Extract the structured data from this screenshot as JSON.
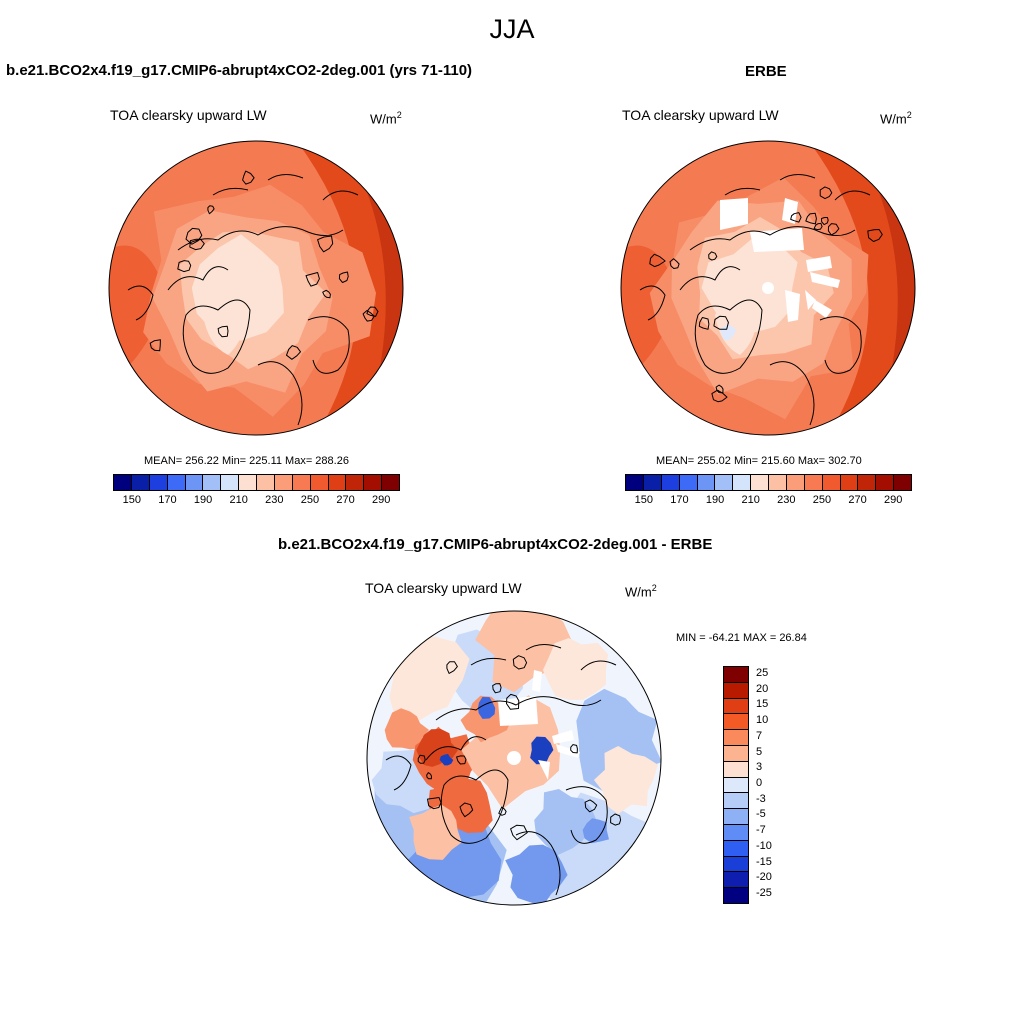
{
  "figure": {
    "title": "JJA"
  },
  "panels": {
    "model": {
      "title": "b.e21.BCO2x4.f19_g17.CMIP6-abrupt4xCO2-2deg.001 (yrs 71-110)",
      "variable": "TOA clearsky upward LW",
      "units_base": "W/m",
      "units_exp": "2",
      "stats": "MEAN= 256.22  Min= 225.11  Max= 288.26",
      "map_kind": "model"
    },
    "obs": {
      "title": "ERBE",
      "variable": "TOA clearsky upward LW",
      "units_base": "W/m",
      "units_exp": "2",
      "stats": "MEAN= 255.02  Min= 215.60  Max= 302.70",
      "map_kind": "obs"
    },
    "diff": {
      "title": "b.e21.BCO2x4.f19_g17.CMIP6-abrupt4xCO2-2deg.001 - ERBE",
      "variable": "TOA clearsky upward LW",
      "units_base": "W/m",
      "units_exp": "2",
      "stats": "MIN = -64.21 MAX =  26.84",
      "map_kind": "diff"
    }
  },
  "colorbars": {
    "absolute": {
      "colors": [
        "#00007f",
        "#0a1fa8",
        "#1e3fe0",
        "#3d6af7",
        "#6d95f5",
        "#a3bff7",
        "#d4e4fb",
        "#fde0d2",
        "#fcc0a4",
        "#fb9d78",
        "#f87a52",
        "#f05a2e",
        "#e03e14",
        "#c02508",
        "#a30e00",
        "#7f0000"
      ],
      "ticks": [
        "150",
        "170",
        "190",
        "210",
        "230",
        "250",
        "270",
        "290"
      ]
    },
    "difference": {
      "colors": [
        "#7f0000",
        "#b81a00",
        "#e03e14",
        "#f45a25",
        "#fa8a5c",
        "#fcb490",
        "#fde0d2",
        "#dde9fb",
        "#b6cdf7",
        "#8eb0f5",
        "#5f8cf5",
        "#2f5ef2",
        "#1a3fd8",
        "#0e1fb0",
        "#000080"
      ],
      "ticks": [
        "25",
        "20",
        "15",
        "10",
        "7",
        "5",
        "3",
        "0",
        "-3",
        "-5",
        "-7",
        "-10",
        "-15",
        "-20",
        "-25"
      ]
    }
  },
  "map_palette": {
    "abs_levels": [
      "#f9a584",
      "#f78d66",
      "#f47a52",
      "#ee6034",
      "#e24a1c",
      "#c83510",
      "#fcc6ac",
      "#fde3d6",
      "#dfe9fb"
    ],
    "diff_levels": [
      "#f0f5fd",
      "#c9dbf8",
      "#a5c0f3",
      "#7299ee",
      "#3a66e0",
      "#1a3fbf",
      "#fde6da",
      "#fcc0a4",
      "#f89670",
      "#ef6a3f",
      "#d9431c"
    ],
    "coast": "#000000"
  }
}
